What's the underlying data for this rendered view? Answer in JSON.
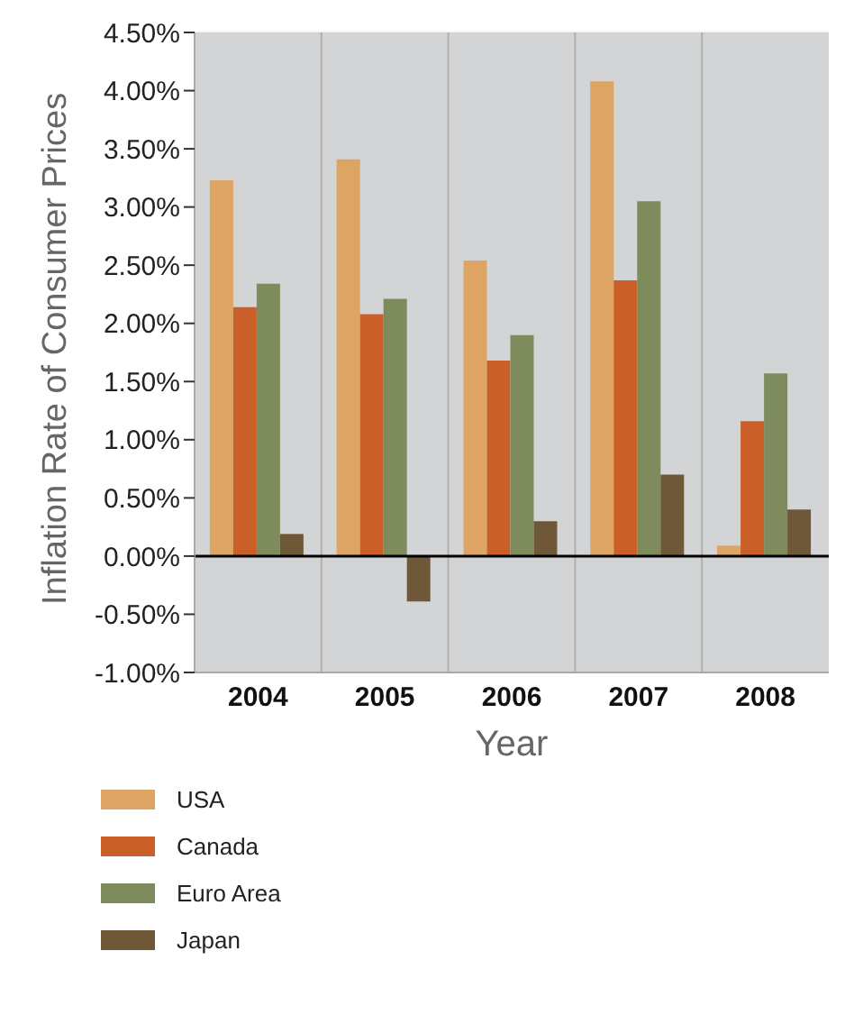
{
  "chart_data": {
    "type": "bar",
    "xlabel": "Year",
    "ylabel": "Inflation Rate of Consumer Prices",
    "categories": [
      "2004",
      "2005",
      "2006",
      "2007",
      "2008"
    ],
    "series": [
      {
        "name": "USA",
        "color": "#dda464",
        "values": [
          3.23,
          3.41,
          2.54,
          4.08,
          0.09
        ]
      },
      {
        "name": "Canada",
        "color": "#cb5f2a",
        "values": [
          2.14,
          2.08,
          1.68,
          2.37,
          1.16
        ]
      },
      {
        "name": "Euro Area",
        "color": "#7e8c5d",
        "values": [
          2.34,
          2.21,
          1.9,
          3.05,
          1.57
        ]
      },
      {
        "name": "Japan",
        "color": "#6e5838",
        "values": [
          0.19,
          -0.39,
          0.3,
          0.7,
          0.4
        ]
      }
    ],
    "ylim": [
      -1,
      4.5
    ],
    "yticks": [
      {
        "value": -1,
        "label": "-1.00%"
      },
      {
        "value": -0.5,
        "label": "-0.50%"
      },
      {
        "value": 0,
        "label": "0.00%"
      },
      {
        "value": 0.5,
        "label": "0.50%"
      },
      {
        "value": 1,
        "label": "1.00%"
      },
      {
        "value": 1.5,
        "label": "1.50%"
      },
      {
        "value": 2,
        "label": "2.00%"
      },
      {
        "value": 2.5,
        "label": "2.50%"
      },
      {
        "value": 3,
        "label": "3.00%"
      },
      {
        "value": 3.5,
        "label": "3.50%"
      },
      {
        "value": 4,
        "label": "4.00%"
      },
      {
        "value": 4.5,
        "label": "4.50%"
      }
    ],
    "grid": true,
    "legend": "bottom"
  }
}
